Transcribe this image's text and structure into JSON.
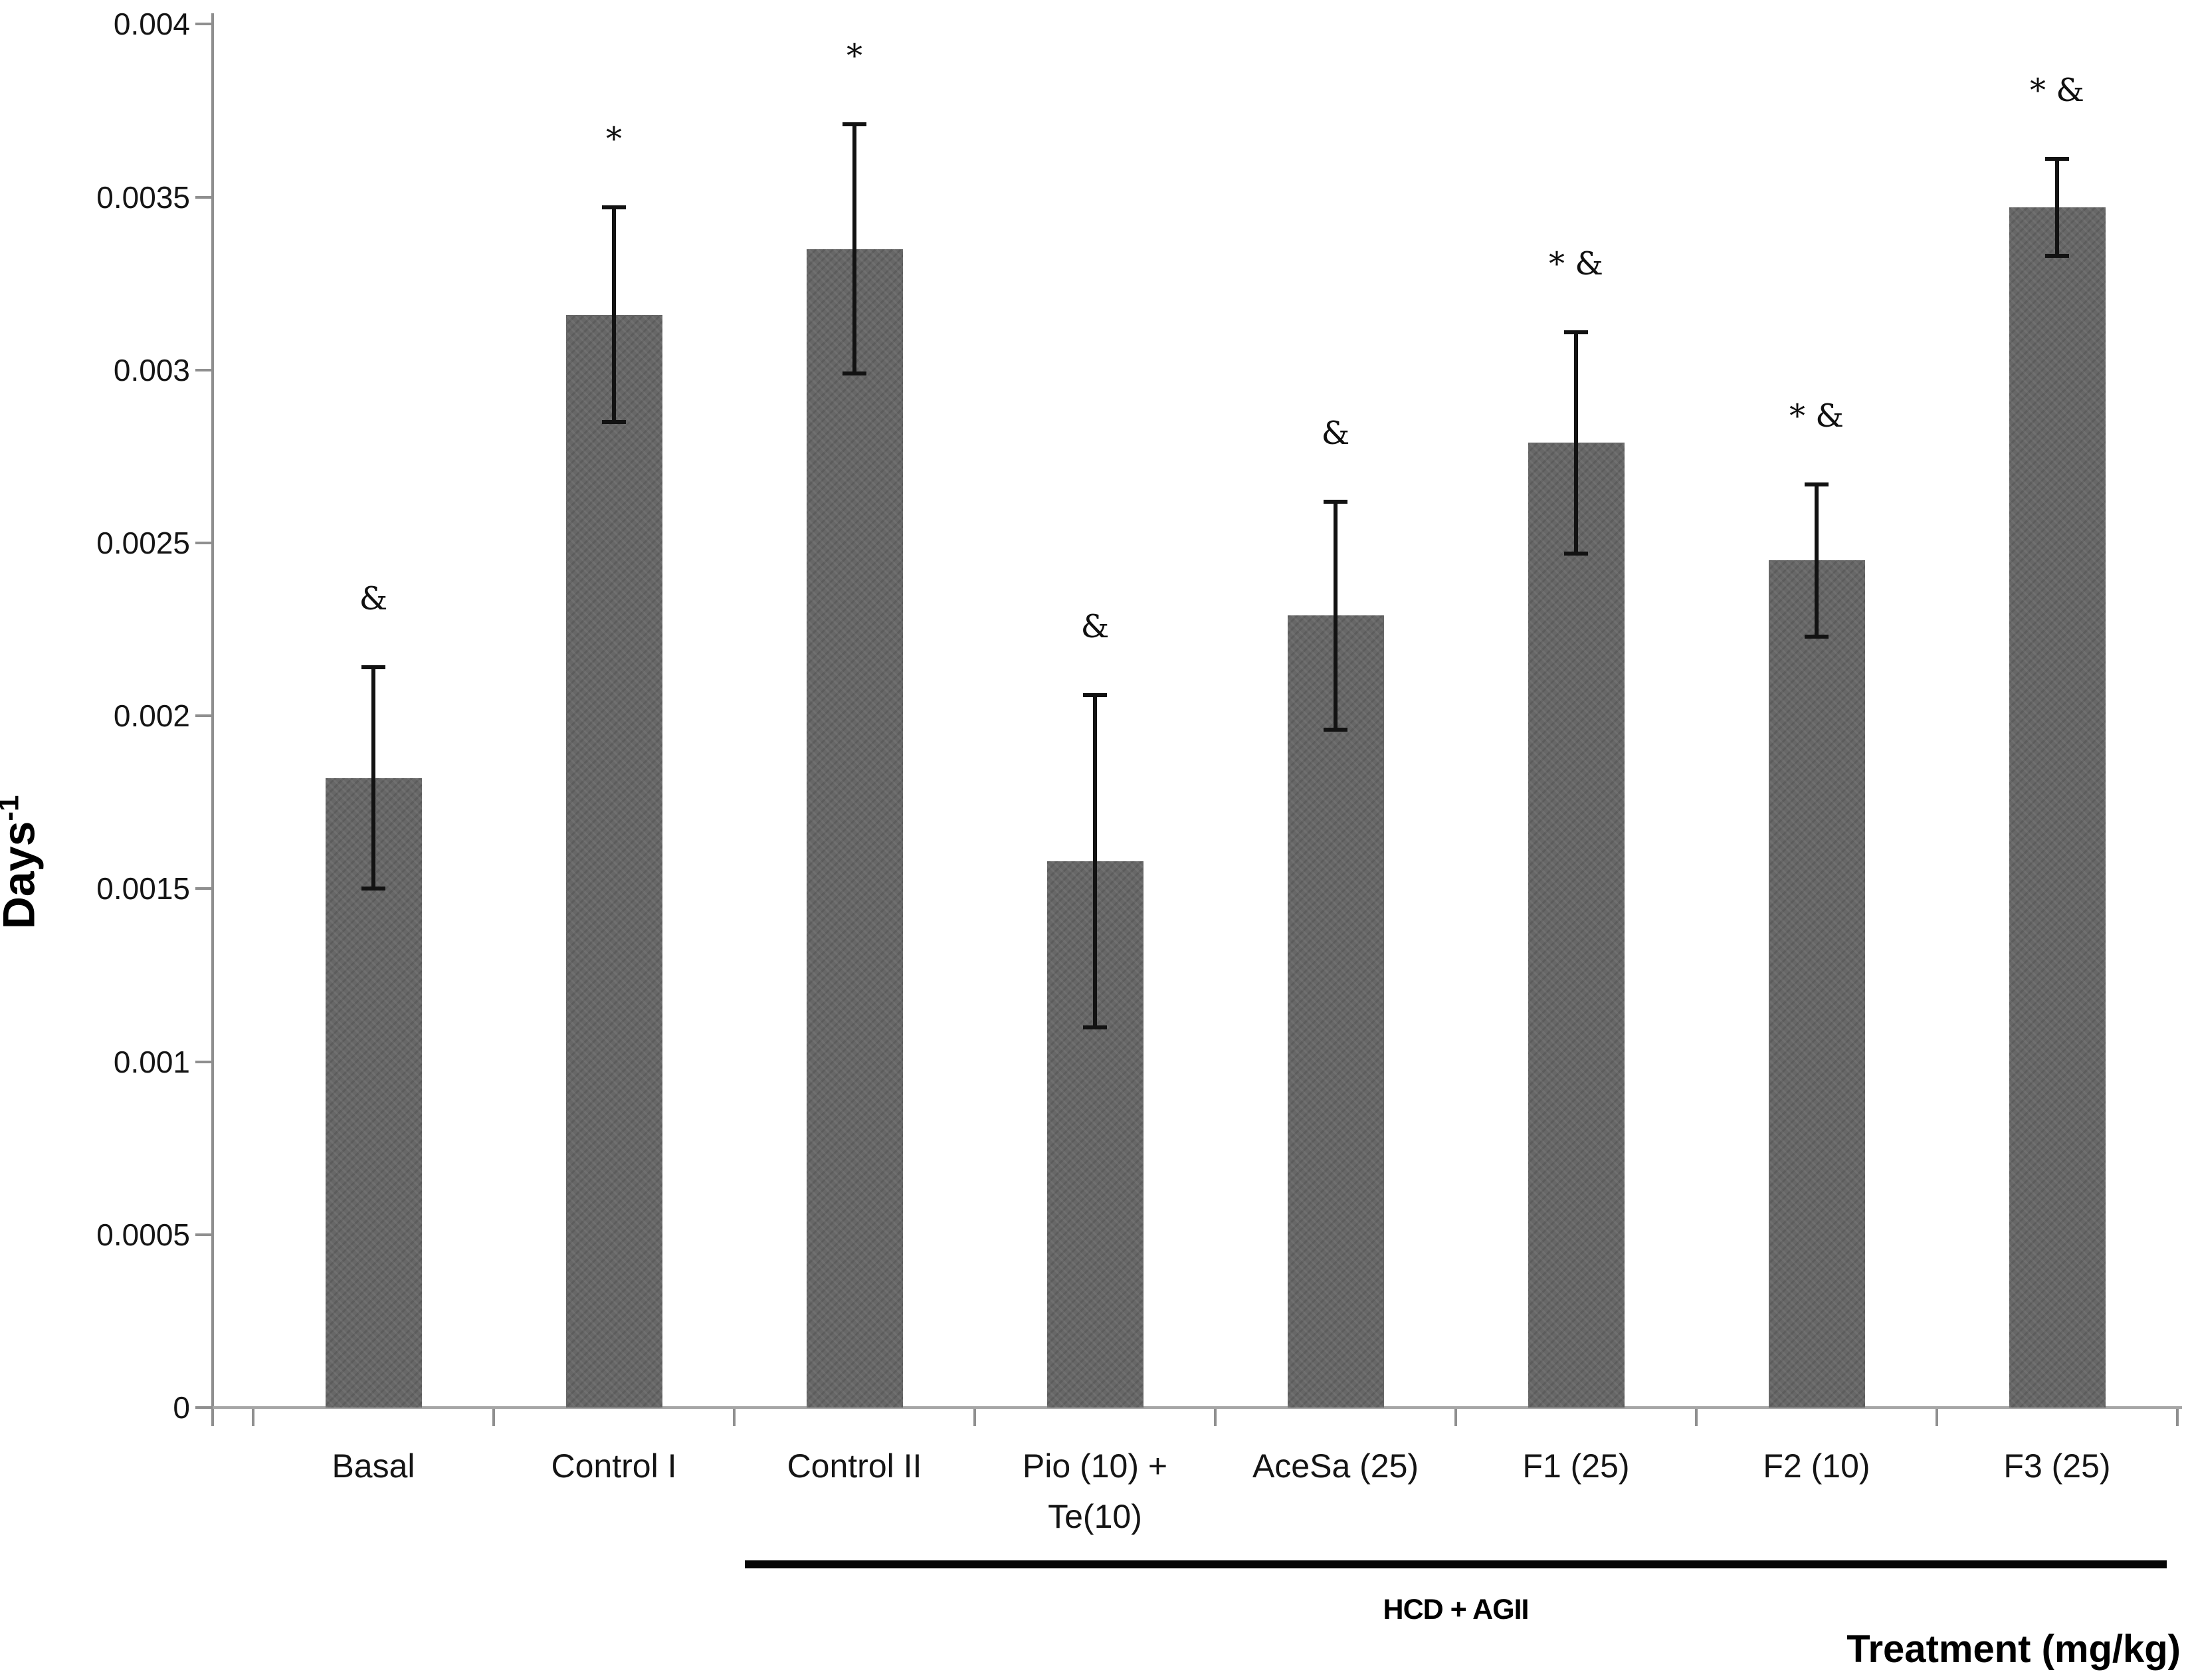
{
  "chart_data": {
    "type": "bar",
    "title": "",
    "ylabel_main": "Days",
    "ylabel_sup": "-1",
    "xlabel": "Treatment (mg/kg)",
    "ylim": [
      0,
      0.004
    ],
    "ytick_step": 0.0005,
    "ytick_labels": [
      "0",
      "0.0005",
      "0.001",
      "0.0015",
      "0.002",
      "0.0025",
      "0.003",
      "0.0035",
      "0.004"
    ],
    "grid": false,
    "legend": null,
    "bar_color": "#676767",
    "categories": [
      "Basal",
      "Control I",
      "Control II",
      "Pio (10) +\nTe(10)",
      "AceSa (25)",
      "F1 (25)",
      "F2 (10)",
      "F3 (25)"
    ],
    "values": [
      0.00182,
      0.00316,
      0.00335,
      0.00158,
      0.00229,
      0.00279,
      0.00245,
      0.00347
    ],
    "errors": [
      0.00032,
      0.00031,
      0.00036,
      0.00048,
      0.00033,
      0.00032,
      0.00022,
      0.00014
    ],
    "annotations": [
      "&",
      "*",
      "*",
      "&",
      "&",
      "* &",
      "* &",
      "* &"
    ],
    "group_bracket": {
      "label": "HCD + AGII",
      "start_category": "Control II",
      "end_category": "F3 (25)"
    }
  }
}
